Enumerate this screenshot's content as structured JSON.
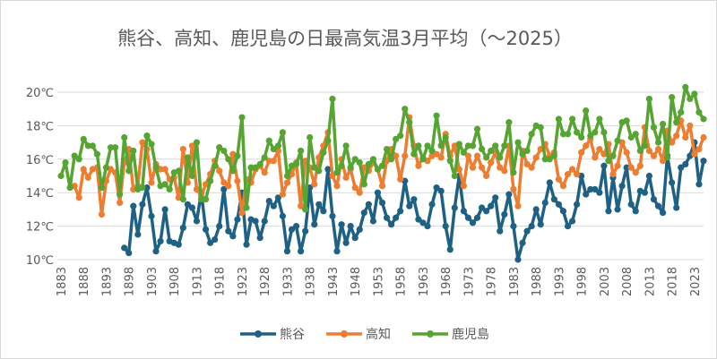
{
  "chart_data": {
    "type": "line",
    "title": "熊谷、高知、鹿児島の日最高気温3月平均（～2025）",
    "ylim": [
      10,
      20
    ],
    "y_ticks": [
      "10℃",
      "12℃",
      "14℃",
      "16℃",
      "18℃",
      "20℃"
    ],
    "y_tick_values": [
      10,
      12,
      14,
      16,
      18,
      20
    ],
    "xlim": [
      1883,
      2025
    ],
    "x_ticks": [
      "1883",
      "1888",
      "1893",
      "1898",
      "1903",
      "1908",
      "1913",
      "1918",
      "1923",
      "1928",
      "1933",
      "1938",
      "1943",
      "1948",
      "1953",
      "1958",
      "1963",
      "1968",
      "1973",
      "1978",
      "1983",
      "1988",
      "1993",
      "1998",
      "2003",
      "2008",
      "2013",
      "2018",
      "2023"
    ],
    "grid": true,
    "legend_position": "bottom",
    "series": [
      {
        "name": "熊谷",
        "color": "#1f6185",
        "x_start": 1897,
        "values": [
          10.7,
          10.4,
          13.2,
          11.5,
          13.3,
          14.3,
          12.6,
          10.5,
          11.1,
          13.0,
          11.1,
          11.0,
          10.9,
          11.9,
          13.3,
          13.1,
          12.3,
          14.0,
          11.8,
          11.0,
          11.2,
          12.0,
          14.2,
          11.7,
          11.4,
          12.4,
          14.0,
          10.9,
          12.4,
          12.3,
          11.3,
          12.3,
          13.5,
          13.2,
          13.7,
          12.6,
          10.5,
          11.8,
          12.0,
          10.5,
          11.7,
          14.3,
          12.1,
          13.3,
          12.9,
          15.4,
          12.6,
          10.5,
          12.1,
          11.0,
          12.0,
          11.3,
          11.8,
          12.8,
          13.3,
          12.3,
          14.0,
          13.4,
          12.5,
          12.1,
          12.5,
          12.9,
          14.7,
          13.2,
          13.6,
          12.4,
          12.2,
          12.0,
          13.3,
          14.3,
          14.1,
          12.0,
          10.6,
          13.1,
          15.0,
          12.9,
          12.5,
          12.2,
          12.5,
          13.1,
          12.9,
          13.2,
          13.7,
          11.7,
          12.7,
          13.9,
          12.0,
          10.0,
          11.0,
          11.7,
          12.0,
          13.0,
          12.1,
          13.4,
          14.6,
          13.6,
          13.3,
          12.9,
          12.0,
          12.3,
          13.3,
          15.0,
          13.9,
          14.2,
          14.2,
          14.0,
          15.6,
          12.9,
          14.9,
          13.0,
          14.4,
          15.5,
          13.3,
          12.9,
          14.1,
          14.0,
          15.0,
          13.6,
          13.2,
          12.8,
          16.2,
          14.6,
          13.1,
          15.5,
          15.7,
          16.2,
          17.0,
          14.5,
          15.9
        ]
      },
      {
        "name": "高知",
        "color": "#ed7d31",
        "x_start": 1886,
        "values": [
          14.4,
          13.7,
          15.4,
          14.9,
          15.4,
          15.5,
          12.7,
          14.7,
          15.4,
          15.2,
          13.4,
          15.8,
          16.6,
          14.2,
          14.4,
          17.0,
          16.6,
          14.6,
          15.7,
          15.4,
          15.4,
          14.8,
          14.9,
          13.7,
          16.6,
          14.6,
          16.8,
          14.2,
          13.8,
          14.5,
          15.1,
          15.9,
          15.3,
          14.6,
          14.4,
          16.3,
          14.7,
          12.8,
          14.8,
          14.6,
          15.4,
          15.6,
          15.2,
          15.9,
          15.9,
          16.5,
          13.9,
          14.6,
          15.1,
          15.8,
          13.2,
          15.9,
          15.5,
          14.5,
          16.1,
          16.8,
          17.6,
          15.0,
          14.4,
          16.0,
          14.9,
          15.4,
          14.3,
          14.0,
          15.5,
          15.3,
          15.8,
          15.4,
          14.4,
          15.9,
          16.6,
          16.2,
          14.8,
          16.2,
          18.5,
          16.8,
          15.6,
          16.1,
          15.9,
          16.2,
          16.3,
          16.1,
          17.5,
          16.2,
          16.8,
          15.4,
          14.4,
          16.2,
          15.5,
          16.2,
          15.5,
          15.0,
          15.8,
          16.4,
          15.5,
          15.3,
          16.8,
          14.2,
          13.2,
          16.5,
          15.7,
          15.5,
          16.1,
          16.6,
          16.9,
          16.2,
          16.4,
          14.8,
          14.4,
          15.1,
          15.4,
          15.1,
          16.4,
          16.8,
          17.2,
          16.1,
          16.6,
          16.3,
          16.9,
          15.1,
          15.6,
          17.0,
          16.4,
          15.5,
          15.2,
          15.6,
          17.9,
          16.5,
          16.2,
          16.6,
          15.9,
          17.7,
          17.0,
          17.4,
          18.3,
          17.3,
          18.0,
          16.3,
          16.6,
          17.3
        ]
      },
      {
        "name": "鹿児島",
        "color": "#56a532",
        "x_start": 1883,
        "values": [
          15.0,
          15.8,
          14.3,
          16.2,
          16.0,
          17.2,
          16.8,
          16.8,
          16.3,
          14.3,
          15.5,
          16.7,
          16.7,
          13.9,
          17.3,
          15.3,
          16.5,
          14.2,
          14.3,
          17.4,
          16.9,
          15.5,
          14.4,
          14.5,
          14.2,
          15.2,
          15.3,
          13.6,
          16.1,
          15.0,
          17.0,
          13.6,
          13.6,
          14.7,
          15.6,
          16.7,
          16.5,
          16.0,
          15.3,
          16.2,
          18.5,
          13.1,
          15.5,
          15.5,
          15.7,
          16.1,
          17.1,
          16.6,
          16.8,
          17.6,
          15.0,
          15.6,
          15.7,
          16.5,
          13.0,
          17.3,
          15.5,
          15.3,
          16.4,
          17.1,
          19.6,
          15.2,
          15.6,
          16.8,
          15.5,
          16.0,
          15.8,
          14.5,
          15.7,
          16.0,
          15.4,
          15.6,
          16.6,
          16.0,
          17.2,
          17.4,
          19.0,
          18.2,
          16.3,
          16.8,
          16.0,
          16.8,
          16.5,
          18.6,
          16.8,
          17.3,
          15.9,
          15.0,
          16.9,
          16.4,
          16.8,
          16.8,
          17.8,
          16.6,
          16.1,
          16.5,
          16.8,
          16.1,
          16.8,
          18.2,
          15.2,
          17.0,
          16.3,
          16.5,
          17.5,
          18.0,
          17.9,
          16.0,
          16.0,
          16.2,
          18.4,
          17.5,
          17.5,
          18.4,
          17.6,
          17.3,
          18.9,
          17.4,
          17.6,
          18.4,
          17.6,
          15.9,
          16.2,
          17.1,
          18.2,
          18.3,
          17.3,
          17.5,
          16.5,
          16.8,
          19.6,
          17.9,
          17.0,
          18.1,
          16.1,
          19.7,
          18.2,
          18.8,
          20.3,
          19.6,
          19.9,
          18.8,
          18.4
        ]
      }
    ]
  }
}
